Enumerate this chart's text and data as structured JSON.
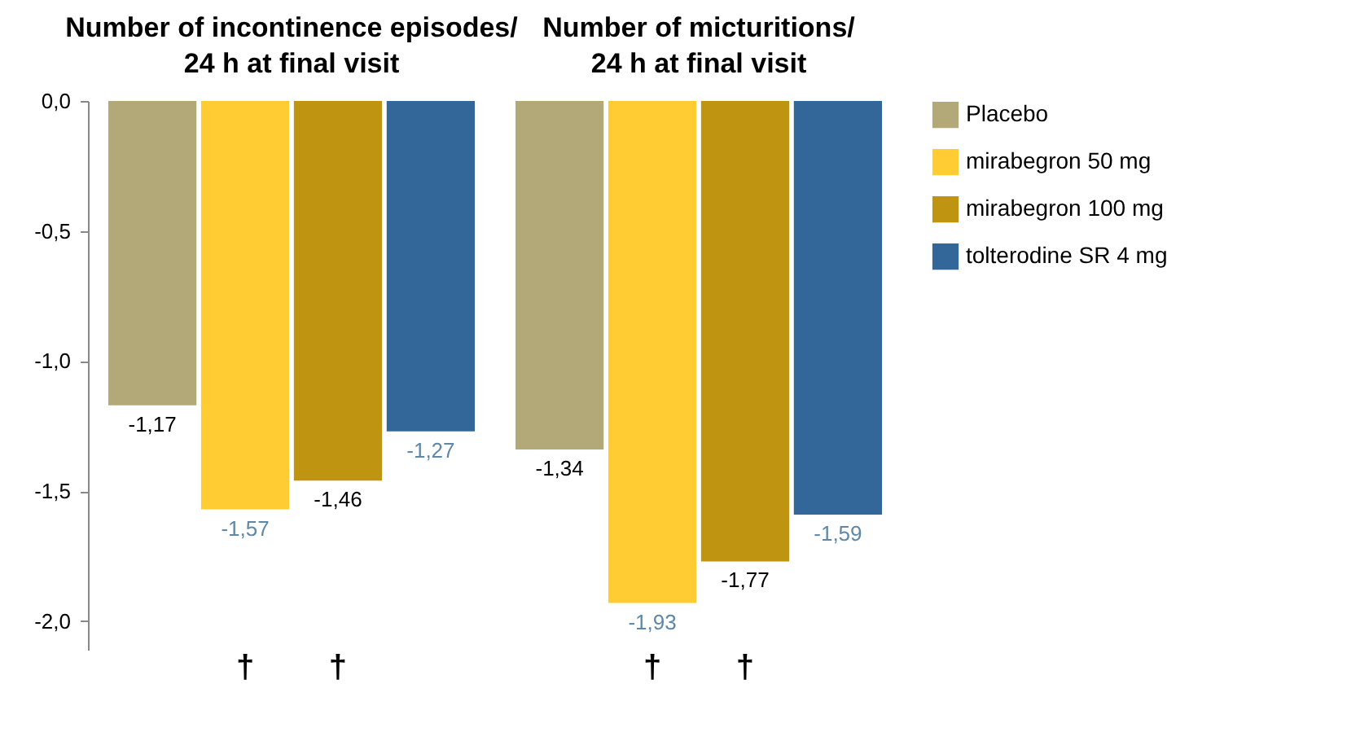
{
  "chart_data": {
    "type": "bar",
    "categories": [
      "Number of incontinence episodes/ 24 h at final visit",
      "Number of micturitions/ 24 h at final visit"
    ],
    "series": [
      {
        "name": "Placebo",
        "color": "#b3a878",
        "values": [
          -1.17,
          -1.34
        ],
        "value_labels": [
          "-1,17",
          "-1,34"
        ]
      },
      {
        "name": "mirabegron 50 mg",
        "color": "#ffcc33",
        "values": [
          -1.57,
          -1.93
        ],
        "value_labels": [
          "-1,57",
          "-1,93"
        ]
      },
      {
        "name": "mirabegron 100 mg",
        "color": "#bf9410",
        "values": [
          -1.46,
          -1.77
        ],
        "value_labels": [
          "-1,46",
          "-1,77"
        ]
      },
      {
        "name": "tolterodine SR 4 mg",
        "color": "#336699",
        "values": [
          -1.27,
          -1.59
        ],
        "value_labels": [
          "-1,27",
          "-1,59"
        ]
      }
    ],
    "ylim": [
      -2.11,
      0
    ],
    "yticks": [
      {
        "value": 0,
        "label": "0,0"
      },
      {
        "value": -0.5,
        "label": "-0,5"
      },
      {
        "value": -1,
        "label": "-1,0"
      },
      {
        "value": -1.5,
        "label": "-1,5"
      },
      {
        "value": -2,
        "label": "-2,0"
      }
    ],
    "annotations": [
      "†",
      "†",
      "†",
      "†"
    ],
    "legend": "right",
    "grid": false
  }
}
